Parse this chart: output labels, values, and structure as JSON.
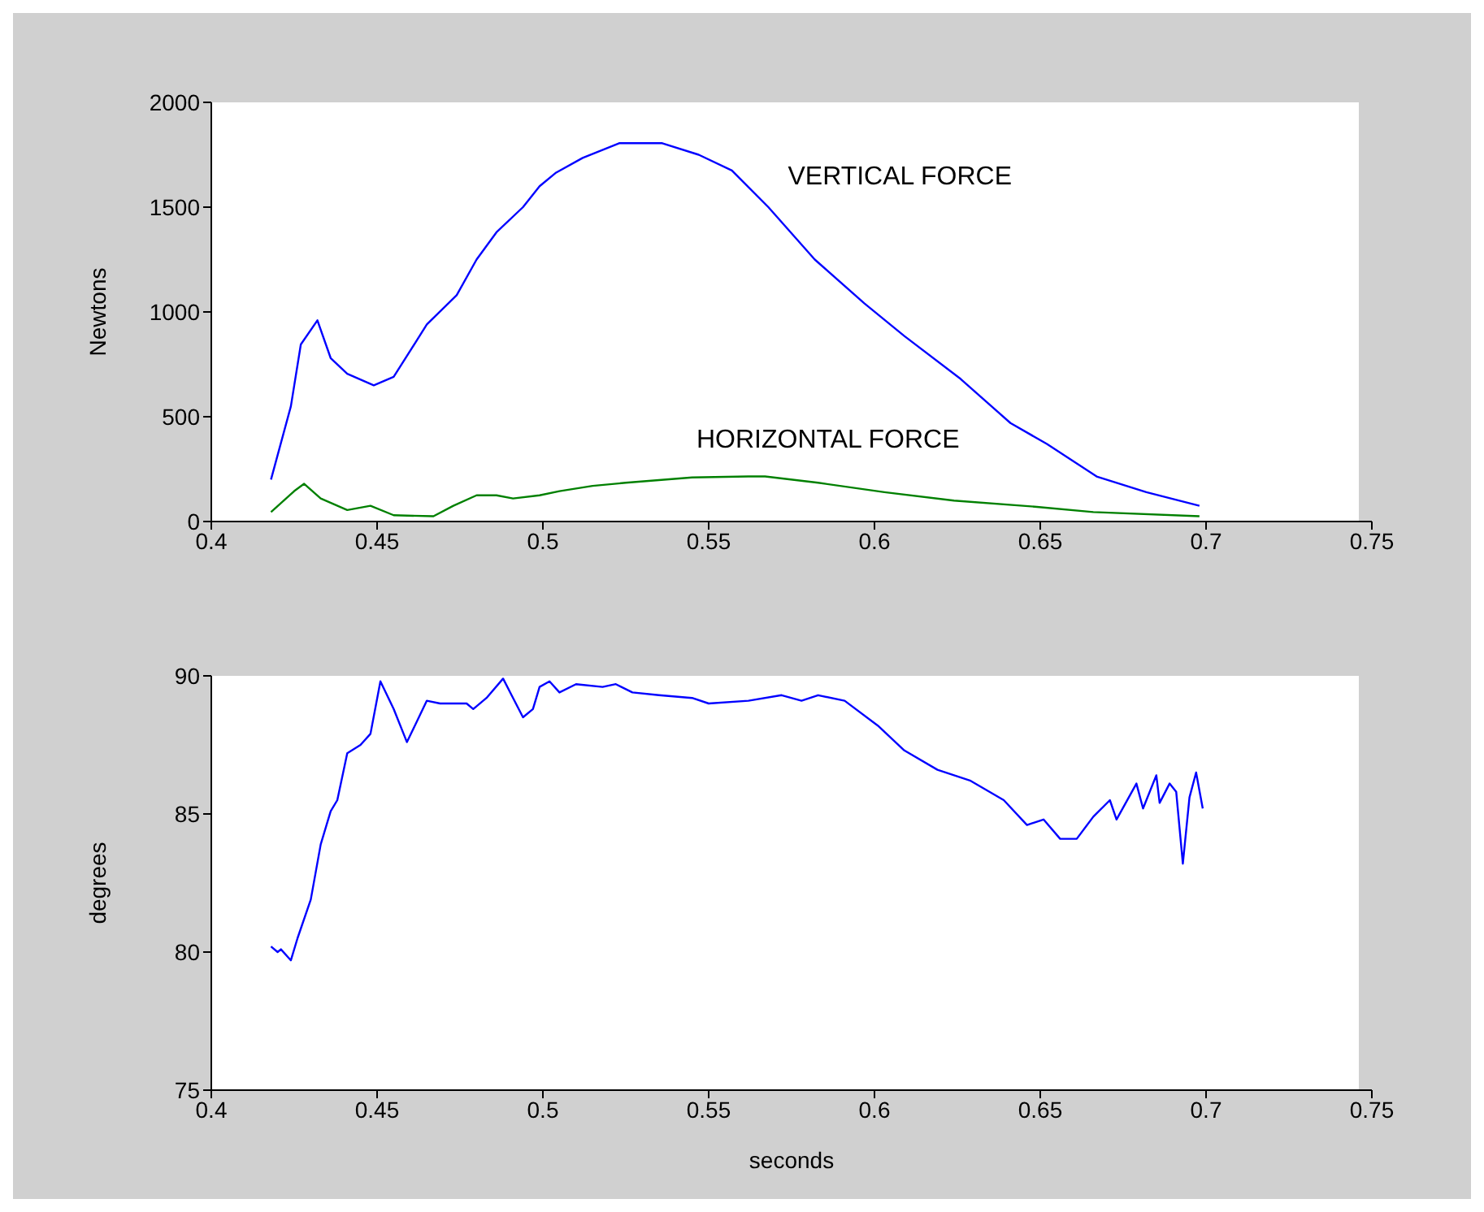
{
  "chart_data": [
    {
      "type": "line",
      "ylabel": "Newtons",
      "xlim": [
        0.4,
        0.75
      ],
      "xticks": [
        0.4,
        0.45,
        0.5,
        0.55,
        0.6,
        0.65,
        0.7,
        0.75
      ],
      "ylim": [
        0,
        2000
      ],
      "yticks": [
        0,
        500,
        1000,
        1500,
        2000
      ],
      "marker": "none",
      "line_style": "solid",
      "series": [
        {
          "name": "VERTICAL FORCE",
          "color": "#0000ff",
          "x": [
            0.418,
            0.424,
            0.427,
            0.432,
            0.436,
            0.441,
            0.449,
            0.455,
            0.465,
            0.474,
            0.48,
            0.486,
            0.494,
            0.499,
            0.504,
            0.512,
            0.523,
            0.536,
            0.547,
            0.557,
            0.568,
            0.582,
            0.597,
            0.609,
            0.626,
            0.641,
            0.652,
            0.667,
            0.682,
            0.698
          ],
          "values": [
            200,
            550,
            845,
            960,
            780,
            705,
            650,
            690,
            940,
            1080,
            1250,
            1380,
            1500,
            1600,
            1665,
            1735,
            1805,
            1805,
            1750,
            1675,
            1500,
            1250,
            1040,
            885,
            680,
            470,
            370,
            215,
            140,
            75
          ]
        },
        {
          "name": "HORIZONTAL FORCE",
          "color": "#008000",
          "x": [
            0.418,
            0.425,
            0.428,
            0.433,
            0.441,
            0.448,
            0.455,
            0.467,
            0.473,
            0.48,
            0.486,
            0.491,
            0.499,
            0.505,
            0.515,
            0.525,
            0.545,
            0.562,
            0.567,
            0.583,
            0.603,
            0.624,
            0.649,
            0.666,
            0.698
          ],
          "values": [
            45,
            145,
            180,
            110,
            55,
            75,
            30,
            25,
            75,
            125,
            125,
            110,
            125,
            145,
            170,
            185,
            210,
            215,
            215,
            185,
            140,
            100,
            70,
            45,
            25
          ]
        }
      ]
    },
    {
      "type": "line",
      "xlabel": "seconds",
      "ylabel": "degrees",
      "xlim": [
        0.4,
        0.75
      ],
      "xticks": [
        0.4,
        0.45,
        0.5,
        0.55,
        0.6,
        0.65,
        0.7,
        0.75
      ],
      "ylim": [
        75,
        90
      ],
      "yticks": [
        75,
        80,
        85,
        90
      ],
      "marker": "none",
      "line_style": "solid",
      "series": [
        {
          "color": "#0000ff",
          "x": [
            0.418,
            0.42,
            0.421,
            0.424,
            0.426,
            0.43,
            0.433,
            0.436,
            0.438,
            0.441,
            0.445,
            0.448,
            0.451,
            0.455,
            0.459,
            0.465,
            0.469,
            0.477,
            0.479,
            0.483,
            0.488,
            0.491,
            0.494,
            0.497,
            0.499,
            0.502,
            0.505,
            0.51,
            0.518,
            0.522,
            0.527,
            0.535,
            0.545,
            0.55,
            0.562,
            0.572,
            0.578,
            0.583,
            0.591,
            0.601,
            0.609,
            0.619,
            0.629,
            0.639,
            0.646,
            0.651,
            0.656,
            0.661,
            0.666,
            0.671,
            0.673,
            0.679,
            0.681,
            0.685,
            0.686,
            0.689,
            0.691,
            0.693,
            0.695,
            0.697,
            0.699
          ],
          "values": [
            80.2,
            80.0,
            80.1,
            79.7,
            80.5,
            81.9,
            83.9,
            85.1,
            85.5,
            87.2,
            87.5,
            87.9,
            89.8,
            88.8,
            87.6,
            89.1,
            89.0,
            89.0,
            88.8,
            89.2,
            89.9,
            89.2,
            88.5,
            88.8,
            89.6,
            89.8,
            89.4,
            89.7,
            89.6,
            89.7,
            89.4,
            89.3,
            89.2,
            89.0,
            89.1,
            89.3,
            89.1,
            89.3,
            89.1,
            88.2,
            87.3,
            86.6,
            86.2,
            85.5,
            84.6,
            84.8,
            84.1,
            84.1,
            84.9,
            85.5,
            84.8,
            86.1,
            85.2,
            86.4,
            85.4,
            86.1,
            85.8,
            83.2,
            85.6,
            86.5,
            85.2
          ]
        }
      ]
    }
  ]
}
